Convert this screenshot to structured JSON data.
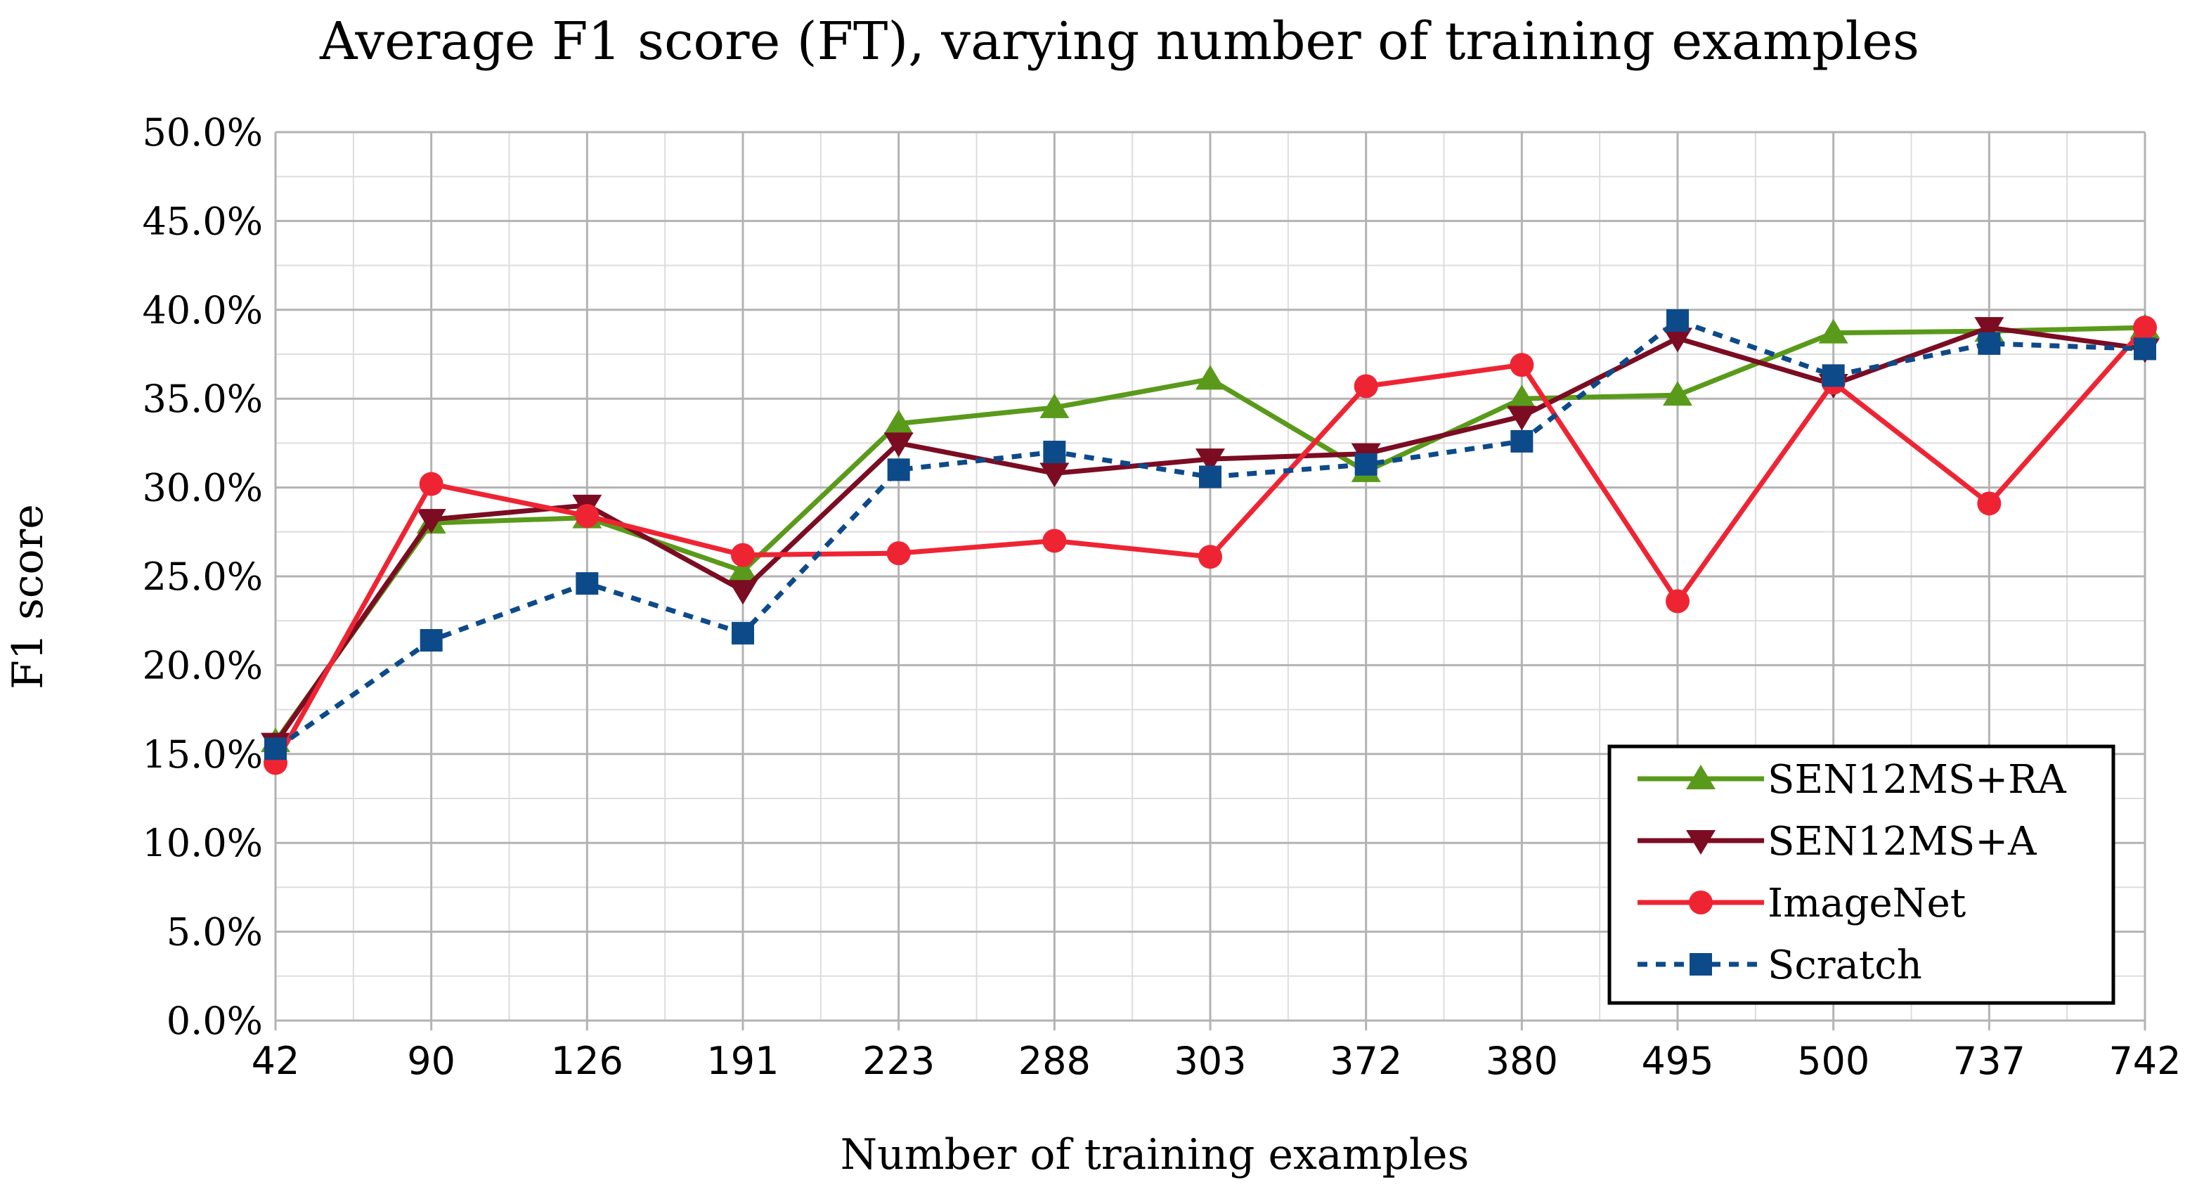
{
  "chart_data": {
    "type": "line",
    "title": "Average F1 score (FT), varying number of training examples",
    "xlabel": "Number of training examples",
    "ylabel": "F1 score",
    "categories": [
      "42",
      "90",
      "126",
      "191",
      "223",
      "288",
      "303",
      "372",
      "380",
      "495",
      "500",
      "737",
      "742"
    ],
    "ylim": [
      0,
      0.5
    ],
    "ytick_step": 0.05,
    "ytick_labels": [
      "0.0%",
      "5.0%",
      "10.0%",
      "15.0%",
      "20.0%",
      "25.0%",
      "30.0%",
      "35.0%",
      "40.0%",
      "45.0%",
      "50.0%"
    ],
    "grid": true,
    "legend_position": "bottom-right",
    "series": [
      {
        "name": "SEN12MS+RA",
        "color": "#5a9a1a",
        "marker": "triangle-up",
        "dash": "solid",
        "values": [
          0.157,
          0.28,
          0.283,
          0.253,
          0.336,
          0.345,
          0.361,
          0.309,
          0.35,
          0.352,
          0.387,
          0.388,
          0.39
        ]
      },
      {
        "name": "SEN12MS+A",
        "color": "#7b0c22",
        "marker": "triangle-down",
        "dash": "solid",
        "values": [
          0.156,
          0.282,
          0.29,
          0.242,
          0.325,
          0.308,
          0.316,
          0.319,
          0.34,
          0.384,
          0.358,
          0.39,
          0.378
        ]
      },
      {
        "name": "ImageNet",
        "color": "#ef2433",
        "marker": "circle",
        "dash": "solid",
        "values": [
          0.145,
          0.302,
          0.284,
          0.262,
          0.263,
          0.27,
          0.261,
          0.357,
          0.369,
          0.236,
          0.359,
          0.291,
          0.39
        ]
      },
      {
        "name": "Scratch",
        "color": "#0d4a8a",
        "marker": "square",
        "dash": "dashed",
        "values": [
          0.153,
          0.214,
          0.246,
          0.218,
          0.31,
          0.32,
          0.306,
          0.313,
          0.326,
          0.394,
          0.363,
          0.381,
          0.378
        ]
      }
    ]
  }
}
